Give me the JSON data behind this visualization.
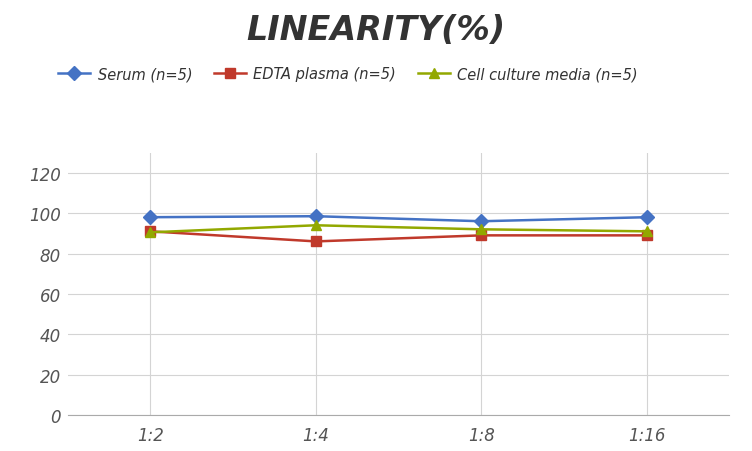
{
  "title": "LINEARITY(%)",
  "x_labels": [
    "1:2",
    "1:4",
    "1:8",
    "1:16"
  ],
  "x_positions": [
    0,
    1,
    2,
    3
  ],
  "series": [
    {
      "label": "Serum (n=5)",
      "values": [
        98,
        98.5,
        96,
        98
      ],
      "color": "#4472C4",
      "marker": "D",
      "markersize": 7,
      "linewidth": 1.8
    },
    {
      "label": "EDTA plasma (n=5)",
      "values": [
        91,
        86,
        89,
        89
      ],
      "color": "#C0392B",
      "marker": "s",
      "markersize": 7,
      "linewidth": 1.8
    },
    {
      "label": "Cell culture media (n=5)",
      "values": [
        90.5,
        94,
        92,
        91
      ],
      "color": "#92A800",
      "marker": "^",
      "markersize": 7,
      "linewidth": 1.8
    }
  ],
  "ylim": [
    0,
    130
  ],
  "yticks": [
    0,
    20,
    40,
    60,
    80,
    100,
    120
  ],
  "title_fontsize": 24,
  "legend_fontsize": 10.5,
  "tick_fontsize": 12,
  "background_color": "#ffffff",
  "grid_color": "#d4d4d4"
}
